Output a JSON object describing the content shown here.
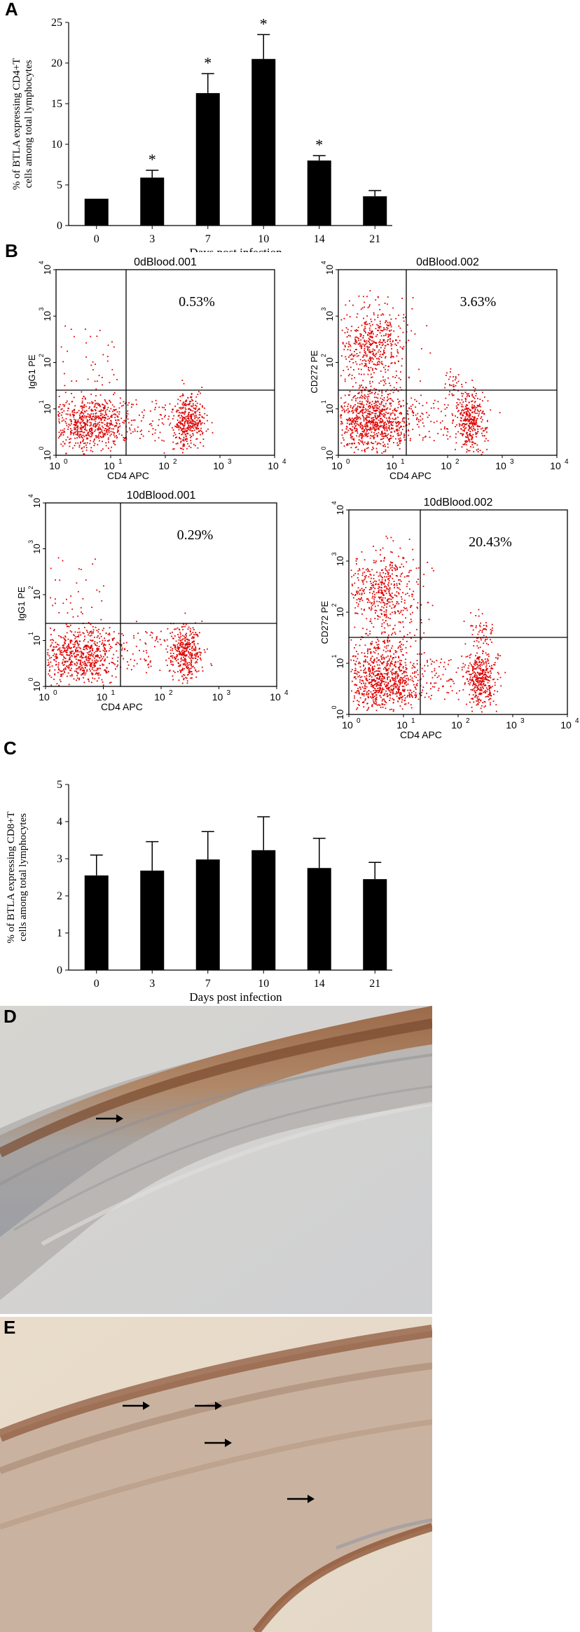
{
  "panels": {
    "A": "A",
    "B": "B",
    "C": "C",
    "D": "D",
    "E": "E"
  },
  "chart_data": [
    {
      "panel": "A",
      "type": "bar",
      "categories": [
        "0",
        "3",
        "7",
        "10",
        "14",
        "21"
      ],
      "values": [
        3.3,
        5.9,
        16.3,
        20.5,
        8.0,
        3.6
      ],
      "errors": [
        0,
        0.9,
        2.4,
        3.0,
        0.6,
        0.7
      ],
      "significance": [
        "",
        "*",
        "*",
        "*",
        "*",
        ""
      ],
      "title": "",
      "xlabel": "Days post infection",
      "ylabel": "% of BTLA expressing CD4+T cells among total lymphocytes",
      "ylabel_lines": [
        "% of BTLA expressing CD4+T",
        "cells among total lymphocytes"
      ],
      "ylim": [
        0,
        25
      ],
      "yticks": [
        "0",
        "5",
        "10",
        "15",
        "20",
        "25"
      ],
      "color": "#000000"
    },
    {
      "panel": "C",
      "type": "bar",
      "categories": [
        "0",
        "3",
        "7",
        "10",
        "14",
        "21"
      ],
      "values": [
        2.55,
        2.68,
        2.98,
        3.23,
        2.75,
        2.45
      ],
      "errors": [
        0.55,
        0.78,
        0.75,
        0.9,
        0.8,
        0.45
      ],
      "title": "",
      "xlabel": "Days post infection",
      "ylabel": "% of BTLA expressing CD8+T cells among total lymphocytes",
      "ylabel_lines": [
        "% of BTLA expressing CD8+T",
        "cells among total lymphocytes"
      ],
      "ylim": [
        0,
        5
      ],
      "yticks": [
        "0",
        "1",
        "2",
        "3",
        "4",
        "5"
      ],
      "color": "#000000"
    },
    {
      "panel": "B",
      "type": "scatter",
      "plots": [
        {
          "title": "0dBlood.001",
          "ylabel": "IgG1 PE",
          "xlabel": "CD4 APC",
          "percent": "0.53%",
          "clusters": "isotype"
        },
        {
          "title": "0dBlood.002",
          "ylabel": "CD272 PE",
          "xlabel": "CD4 APC",
          "percent": "3.63%",
          "clusters": "stained"
        },
        {
          "title": "10dBlood.001",
          "ylabel": "IgG1 PE",
          "xlabel": "CD4 APC",
          "percent": "0.29%",
          "clusters": "isotype"
        },
        {
          "title": "10dBlood.002",
          "ylabel": "CD272 PE",
          "xlabel": "CD4 APC",
          "percent": "20.43%",
          "clusters": "stained"
        }
      ],
      "xticks": [
        "10",
        "10",
        "10",
        "10",
        "10"
      ],
      "tick_exponents": [
        "0",
        "1",
        "2",
        "3",
        "4"
      ],
      "point_color": "#e00000"
    }
  ],
  "micrographs": {
    "D": {
      "arrows": 1
    },
    "E": {
      "arrows": 4
    }
  }
}
